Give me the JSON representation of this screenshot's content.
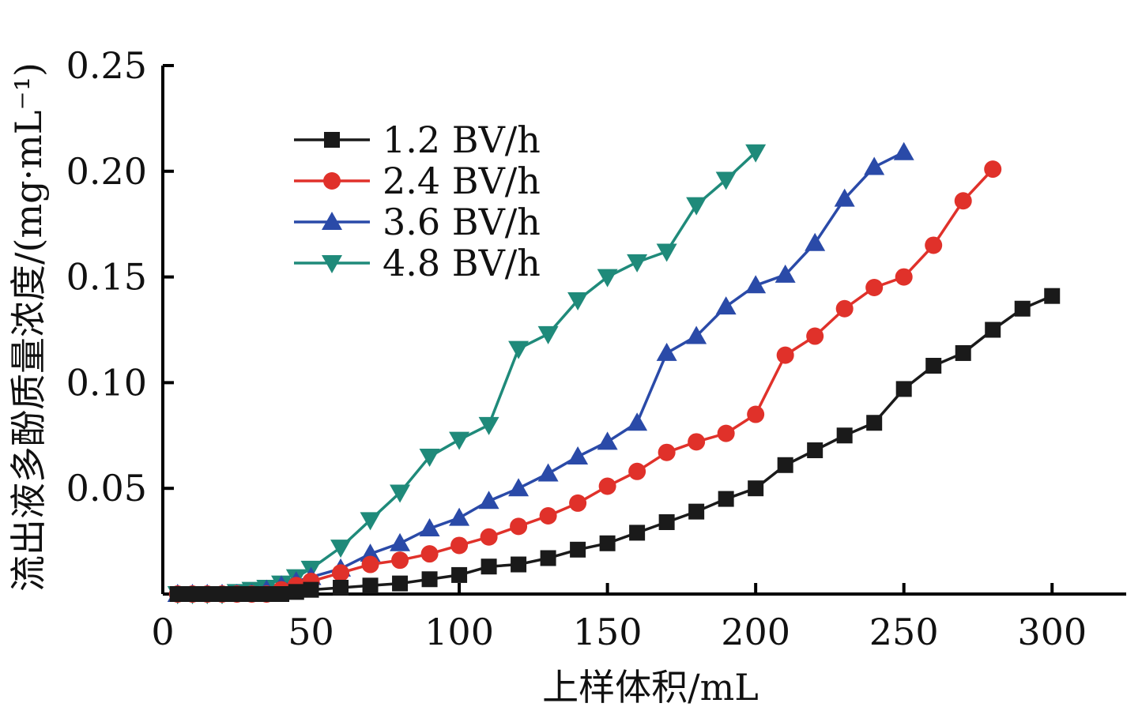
{
  "chart_data": {
    "type": "line",
    "xlabel": "上样体积/mL",
    "ylabel": "流出液多酚质量浓度/(mg·mL⁻¹)",
    "xlim": [
      0,
      325
    ],
    "ylim": [
      0,
      0.25
    ],
    "xticks": [
      0,
      50,
      100,
      150,
      200,
      250,
      300
    ],
    "yticks": [
      0.05,
      0.1,
      0.15,
      0.2,
      0.25
    ],
    "xtick_labels": [
      "0",
      "50",
      "100",
      "150",
      "200",
      "250",
      "300"
    ],
    "ytick_labels": [
      "0.05",
      "0.10",
      "0.15",
      "0.20",
      "0.25"
    ],
    "grid": false,
    "legend_position": "top-left",
    "series": [
      {
        "name": "1.2 BV/h",
        "color": "#1a1a1a",
        "marker": "square",
        "x": [
          5,
          10,
          15,
          20,
          25,
          30,
          35,
          40,
          45,
          50,
          60,
          70,
          80,
          90,
          100,
          110,
          120,
          130,
          140,
          150,
          160,
          170,
          180,
          190,
          200,
          210,
          220,
          230,
          240,
          250,
          260,
          270,
          280,
          290,
          300
        ],
        "y": [
          0,
          0,
          0,
          0,
          0,
          0,
          0,
          0,
          0.001,
          0.002,
          0.003,
          0.004,
          0.005,
          0.007,
          0.009,
          0.013,
          0.014,
          0.017,
          0.021,
          0.024,
          0.029,
          0.034,
          0.039,
          0.045,
          0.05,
          0.061,
          0.068,
          0.075,
          0.081,
          0.097,
          0.108,
          0.114,
          0.125,
          0.135,
          0.141
        ]
      },
      {
        "name": "2.4 BV/h",
        "color": "#e0312a",
        "marker": "circle",
        "x": [
          5,
          10,
          15,
          20,
          25,
          30,
          35,
          40,
          45,
          50,
          60,
          70,
          80,
          90,
          100,
          110,
          120,
          130,
          140,
          150,
          160,
          170,
          180,
          190,
          200,
          210,
          220,
          230,
          240,
          250,
          260,
          270,
          280
        ],
        "y": [
          0,
          0,
          0,
          0,
          0,
          0,
          0,
          0.002,
          0.004,
          0.006,
          0.01,
          0.014,
          0.016,
          0.019,
          0.023,
          0.027,
          0.032,
          0.037,
          0.043,
          0.051,
          0.058,
          0.067,
          0.072,
          0.076,
          0.085,
          0.113,
          0.122,
          0.135,
          0.145,
          0.15,
          0.165,
          0.186,
          0.201
        ]
      },
      {
        "name": "3.6 BV/h",
        "color": "#2a4aa8",
        "marker": "triangle-up",
        "x": [
          5,
          10,
          15,
          20,
          25,
          30,
          35,
          40,
          45,
          50,
          60,
          70,
          80,
          90,
          100,
          110,
          120,
          130,
          140,
          150,
          160,
          170,
          180,
          190,
          200,
          210,
          220,
          230,
          240,
          250
        ],
        "y": [
          0,
          0,
          0,
          0,
          0,
          0,
          0.002,
          0.004,
          0.006,
          0.008,
          0.012,
          0.019,
          0.024,
          0.031,
          0.036,
          0.044,
          0.05,
          0.057,
          0.065,
          0.072,
          0.081,
          0.114,
          0.122,
          0.136,
          0.146,
          0.151,
          0.166,
          0.187,
          0.202,
          0.209
        ]
      },
      {
        "name": "4.8 BV/h",
        "color": "#1f8a7a",
        "marker": "triangle-down",
        "x": [
          5,
          10,
          15,
          20,
          25,
          30,
          35,
          40,
          45,
          50,
          60,
          70,
          80,
          90,
          100,
          110,
          120,
          130,
          140,
          150,
          160,
          170,
          180,
          190,
          200
        ],
        "y": [
          0,
          0,
          0,
          0,
          0.001,
          0.002,
          0.003,
          0.005,
          0.008,
          0.012,
          0.022,
          0.035,
          0.048,
          0.065,
          0.073,
          0.08,
          0.116,
          0.123,
          0.139,
          0.15,
          0.157,
          0.162,
          0.184,
          0.196,
          0.209
        ]
      }
    ]
  }
}
